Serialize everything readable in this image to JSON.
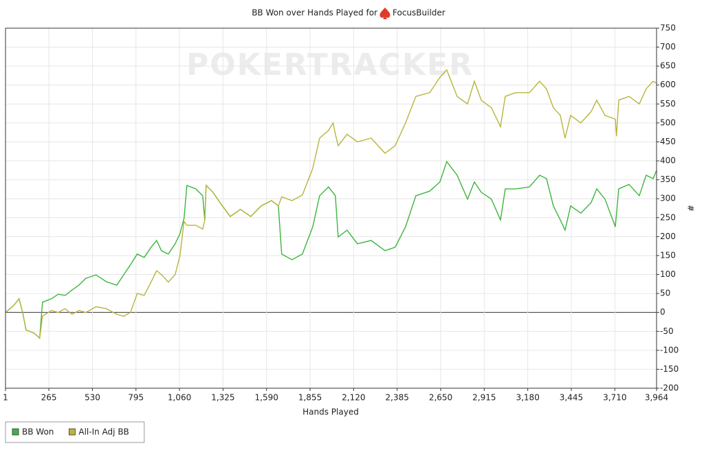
{
  "chart_data": {
    "type": "line",
    "title": "BB Won over Hands Played for",
    "player": "FocusBuilder",
    "watermark": "POKERTRACKER",
    "xlabel": "Hands Played",
    "ylabel": "#",
    "xlim": [
      1,
      3964
    ],
    "ylim": [
      -200,
      750
    ],
    "xticks": [
      1,
      {
        "value": 265,
        "label": "265"
      },
      530,
      795,
      {
        "value": 1060,
        "label": "1,060"
      },
      {
        "value": 1325,
        "label": "1,325"
      },
      {
        "value": 1590,
        "label": "1,590"
      },
      {
        "value": 1855,
        "label": "1,855"
      },
      {
        "value": 2120,
        "label": "2,120"
      },
      {
        "value": 2385,
        "label": "2,385"
      },
      {
        "value": 2650,
        "label": "2,650"
      },
      {
        "value": 2915,
        "label": "2,915"
      },
      {
        "value": 3180,
        "label": "3,180"
      },
      {
        "value": 3445,
        "label": "3,445"
      },
      {
        "value": 3710,
        "label": "3,710"
      },
      {
        "value": 3964,
        "label": "3,964"
      }
    ],
    "yticks": [
      -200,
      -150,
      -100,
      -50,
      0,
      50,
      100,
      150,
      200,
      250,
      300,
      350,
      400,
      450,
      500,
      550,
      600,
      650,
      700,
      750
    ],
    "grid": true,
    "legend": "bottom-left",
    "series": [
      {
        "name": "BB Won",
        "color": "#3cb53c",
        "x": [
          1,
          50,
          84,
          105,
          126,
          176,
          209,
          226,
          280,
          322,
          364,
          406,
          448,
          490,
          552,
          615,
          678,
          720,
          762,
          803,
          845,
          887,
          921,
          950,
          992,
          1034,
          1063,
          1088,
          1105,
          1159,
          1201,
          1214,
          1222,
          1264,
          1306,
          1369,
          1431,
          1494,
          1557,
          1620,
          1662,
          1682,
          1745,
          1808,
          1871,
          1913,
          1967,
          2009,
          2026,
          2080,
          2143,
          2227,
          2311,
          2373,
          2436,
          2499,
          2583,
          2645,
          2687,
          2750,
          2813,
          2855,
          2897,
          2959,
          3014,
          3043,
          3106,
          3190,
          3252,
          3294,
          3336,
          3378,
          3407,
          3441,
          3503,
          3566,
          3600,
          3650,
          3713,
          3734,
          3796,
          3859,
          3901,
          3943,
          3964
        ],
        "values": [
          0,
          18,
          36,
          0,
          -46,
          -55,
          -68,
          27,
          36,
          48,
          45,
          59,
          72,
          90,
          99,
          81,
          72,
          99,
          126,
          154,
          145,
          172,
          190,
          163,
          154,
          181,
          208,
          248,
          335,
          326,
          308,
          244,
          335,
          317,
          290,
          253,
          272,
          253,
          281,
          295,
          281,
          154,
          139,
          154,
          226,
          308,
          331,
          308,
          199,
          217,
          181,
          190,
          163,
          172,
          226,
          308,
          320,
          344,
          398,
          362,
          299,
          344,
          317,
          299,
          244,
          326,
          326,
          331,
          362,
          353,
          281,
          244,
          217,
          281,
          262,
          290,
          326,
          299,
          226,
          326,
          338,
          308,
          362,
          353,
          375
        ]
      },
      {
        "name": "All-In Adj BB",
        "color": "#b8b43c",
        "x": [
          1,
          50,
          84,
          105,
          126,
          176,
          209,
          226,
          280,
          322,
          364,
          406,
          448,
          490,
          552,
          615,
          678,
          720,
          762,
          803,
          845,
          887,
          921,
          950,
          992,
          1034,
          1063,
          1088,
          1105,
          1159,
          1201,
          1214,
          1222,
          1264,
          1306,
          1369,
          1431,
          1494,
          1557,
          1620,
          1662,
          1682,
          1745,
          1808,
          1871,
          1913,
          1967,
          1995,
          2009,
          2026,
          2080,
          2143,
          2227,
          2311,
          2373,
          2436,
          2499,
          2583,
          2645,
          2687,
          2750,
          2813,
          2855,
          2897,
          2959,
          3014,
          3043,
          3106,
          3190,
          3252,
          3294,
          3336,
          3378,
          3407,
          3441,
          3503,
          3566,
          3600,
          3650,
          3713,
          3720,
          3734,
          3796,
          3859,
          3901,
          3943,
          3964
        ],
        "values": [
          0,
          18,
          36,
          0,
          -46,
          -55,
          -68,
          -10,
          5,
          0,
          10,
          -5,
          5,
          0,
          15,
          10,
          -5,
          -10,
          0,
          50,
          45,
          80,
          110,
          100,
          80,
          100,
          150,
          240,
          230,
          230,
          220,
          244,
          335,
          317,
          290,
          253,
          272,
          253,
          281,
          295,
          281,
          305,
          295,
          310,
          380,
          460,
          480,
          500,
          470,
          440,
          470,
          450,
          460,
          420,
          440,
          500,
          570,
          580,
          620,
          640,
          570,
          550,
          610,
          560,
          540,
          490,
          570,
          580,
          580,
          610,
          590,
          540,
          520,
          460,
          520,
          500,
          530,
          560,
          520,
          510,
          465,
          560,
          570,
          550,
          590,
          610,
          605
        ]
      }
    ]
  }
}
